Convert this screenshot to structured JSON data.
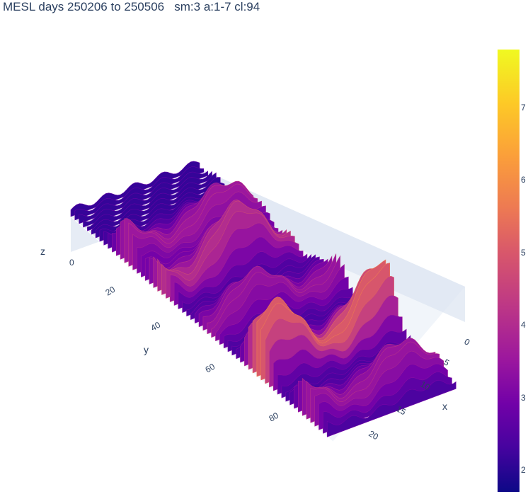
{
  "chart_data": {
    "type": "surface",
    "title": "MESL days 250206 to 250506   sm:3 a:1-7 cl:94",
    "x_label": "x",
    "y_label": "y",
    "z_label": "z",
    "x_ticks": [
      "0",
      "5",
      "10",
      "15",
      "20"
    ],
    "y_ticks": [
      "20",
      "40",
      "60",
      "80"
    ],
    "z_ticks": [
      "0"
    ],
    "colorscale": "plasma",
    "colorbar_range": [
      1.7,
      7.8
    ],
    "colorbar_ticks": [
      "2",
      "3",
      "4",
      "5",
      "6",
      "7"
    ],
    "x_range": [
      0,
      22
    ],
    "y_range": [
      0,
      95
    ]
  }
}
